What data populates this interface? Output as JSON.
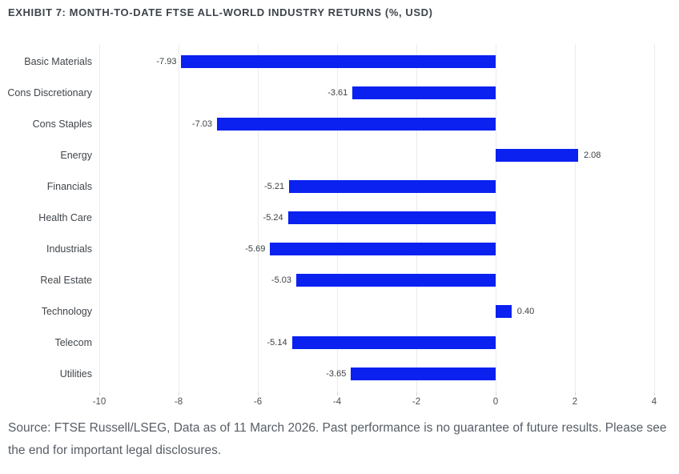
{
  "header": {
    "title": "EXHIBIT 7: MONTH-TO-DATE FTSE ALL-WORLD INDUSTRY RETURNS (%, USD)"
  },
  "footer": {
    "source_note": "Source: FTSE Russell/LSEG, Data as of 11 March 2026. Past performance is no guarantee of future results. Please see the end for important legal disclosures."
  },
  "colors": {
    "bar": "#0a21f0",
    "title_text": "#3e444b",
    "category_text": "#40454a",
    "value_text": "#3c4043",
    "axis_tick_text": "#4a4f55",
    "gridline": "#ebebeb",
    "source_text": "#575e66",
    "background": "#ffffff"
  },
  "chart_data": {
    "type": "bar",
    "orientation": "horizontal",
    "title": "EXHIBIT 7: MONTH-TO-DATE FTSE ALL-WORLD INDUSTRY RETURNS (%, USD)",
    "xlabel": "",
    "ylabel": "",
    "categories": [
      "Basic Materials",
      "Cons Discretionary",
      "Cons Staples",
      "Energy",
      "Financials",
      "Health Care",
      "Industrials",
      "Real Estate",
      "Technology",
      "Telecom",
      "Utilities"
    ],
    "values": [
      -7.93,
      -3.61,
      -7.03,
      2.08,
      -5.21,
      -5.24,
      -5.69,
      -5.03,
      0.4,
      -5.14,
      -3.65
    ],
    "value_labels": [
      "-7.93",
      "-3.61",
      "-7.03",
      "2.08",
      "-5.21",
      "-5.24",
      "-5.69",
      "-5.03",
      "0.40",
      "-5.14",
      "-3.65"
    ],
    "xticks": [
      -10,
      -8,
      -6,
      -4,
      -2,
      0,
      2,
      4
    ],
    "xlim": [
      -10,
      4
    ],
    "grid": "vertical",
    "legend": "none"
  }
}
